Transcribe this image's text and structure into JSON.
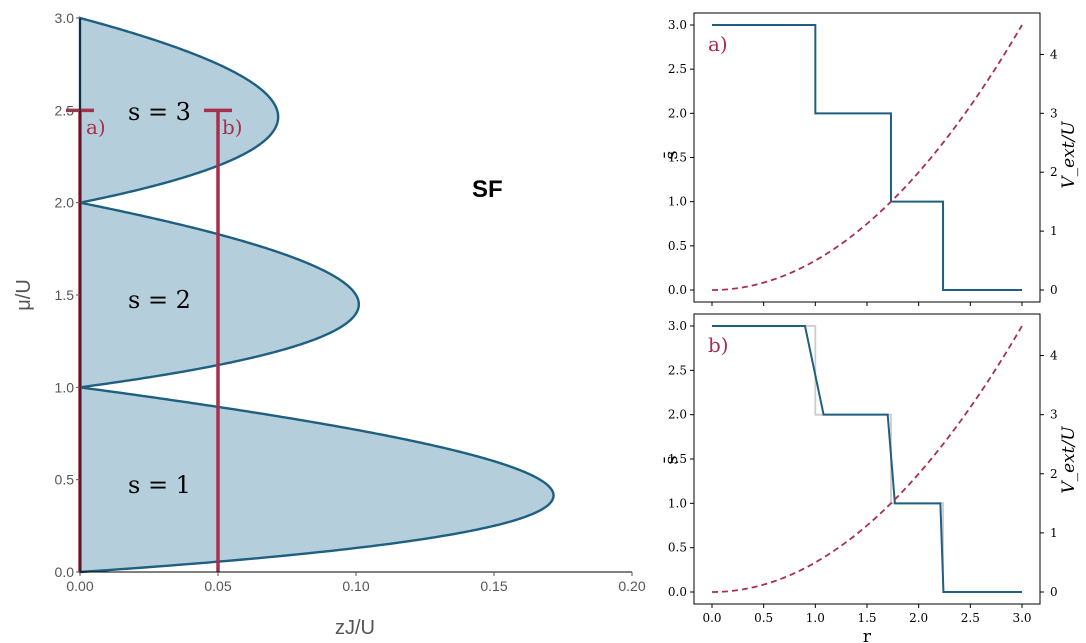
{
  "colors": {
    "lobe_fill": "#b4cfdb",
    "lobe_edge": "#1f5f82",
    "marker": "#a8304f",
    "step": "#1f5f82",
    "step_ghost": "#cccccc",
    "potential": "#a8304f",
    "axis": "#000000",
    "tick_text_main": "#555555"
  },
  "chart_data": [
    {
      "type": "area",
      "panel": "phase-diagram",
      "xlabel": "zJ/U",
      "ylabel": "μ/U",
      "xlim": [
        0,
        0.2
      ],
      "ylim": [
        0,
        3.0
      ],
      "xticks": [
        "0.00",
        "0.05",
        "0.10",
        "0.15",
        "0.20"
      ],
      "yticks": [
        "0.0",
        "0.5",
        "1.0",
        "1.5",
        "2.0",
        "2.5",
        "3.0"
      ],
      "lobes": [
        {
          "label": "s = 1",
          "mu_range": [
            0,
            1
          ],
          "tip": [
            0.172,
            0.414
          ]
        },
        {
          "label": "s = 2",
          "mu_range": [
            1,
            2
          ],
          "tip": [
            0.101,
            1.449
          ]
        },
        {
          "label": "s = 3",
          "mu_range": [
            2,
            3
          ],
          "tip": [
            0.072,
            2.464
          ]
        }
      ],
      "annotations": [
        {
          "text": "SF",
          "x": 0.152,
          "y": 2.2
        }
      ],
      "markers": [
        {
          "label": "a)",
          "x": 0.0,
          "y_range": [
            0,
            2.5
          ]
        },
        {
          "label": "b)",
          "x": 0.05,
          "y_range": [
            0,
            2.5
          ]
        }
      ],
      "grid": false
    },
    {
      "type": "line",
      "panel": "profile-a",
      "panel_label": "a)",
      "xlim": [
        0,
        3.0
      ],
      "ylim": [
        0,
        3.0
      ],
      "y2lim": [
        0,
        4.5
      ],
      "ylabel": "s̄",
      "y2label": "V_ext/U",
      "yticks": [
        "0.0",
        "0.5",
        "1.0",
        "1.5",
        "2.0",
        "2.5",
        "3.0"
      ],
      "y2ticks": [
        "0",
        "1",
        "2",
        "3",
        "4"
      ],
      "series": [
        {
          "role": "density step",
          "x": [
            0.0,
            1.0,
            1.0,
            1.732,
            1.732,
            2.236,
            2.236,
            3.0
          ],
          "y": [
            3,
            3,
            2,
            2,
            1,
            1,
            0,
            0
          ]
        },
        {
          "role": "trap potential",
          "style": "dashed",
          "axis": "right",
          "x": [
            0.0,
            0.5,
            1.0,
            1.5,
            2.0,
            2.5,
            3.0
          ],
          "y": [
            0.0,
            0.125,
            0.5,
            1.125,
            2.0,
            3.125,
            4.5
          ]
        }
      ]
    },
    {
      "type": "line",
      "panel": "profile-b",
      "panel_label": "b)",
      "xlabel": "r",
      "xlim": [
        0,
        3.0
      ],
      "ylim": [
        0,
        3.0
      ],
      "y2lim": [
        0,
        4.5
      ],
      "ylabel": "s̄",
      "y2label": "V_ext/U",
      "xticks": [
        "0.0",
        "0.5",
        "1.0",
        "1.5",
        "2.0",
        "2.5",
        "3.0"
      ],
      "yticks": [
        "0.0",
        "0.5",
        "1.0",
        "1.5",
        "2.0",
        "2.5",
        "3.0"
      ],
      "y2ticks": [
        "0",
        "1",
        "2",
        "3",
        "4"
      ],
      "series": [
        {
          "role": "ghost step",
          "x": [
            0.0,
            1.0,
            1.0,
            1.732,
            1.732,
            2.236,
            2.236,
            3.0
          ],
          "y": [
            3,
            3,
            2,
            2,
            1,
            1,
            0,
            0
          ]
        },
        {
          "role": "density smoothed",
          "x": [
            0.0,
            0.9,
            1.08,
            1.7,
            1.77,
            2.21,
            2.24,
            3.0
          ],
          "y": [
            3,
            3,
            2,
            2,
            1,
            1,
            0,
            0
          ]
        },
        {
          "role": "trap potential",
          "style": "dashed",
          "axis": "right",
          "x": [
            0.0,
            0.5,
            1.0,
            1.5,
            2.0,
            2.5,
            3.0
          ],
          "y": [
            0.0,
            0.125,
            0.5,
            1.125,
            2.0,
            3.125,
            4.5
          ]
        }
      ]
    }
  ]
}
